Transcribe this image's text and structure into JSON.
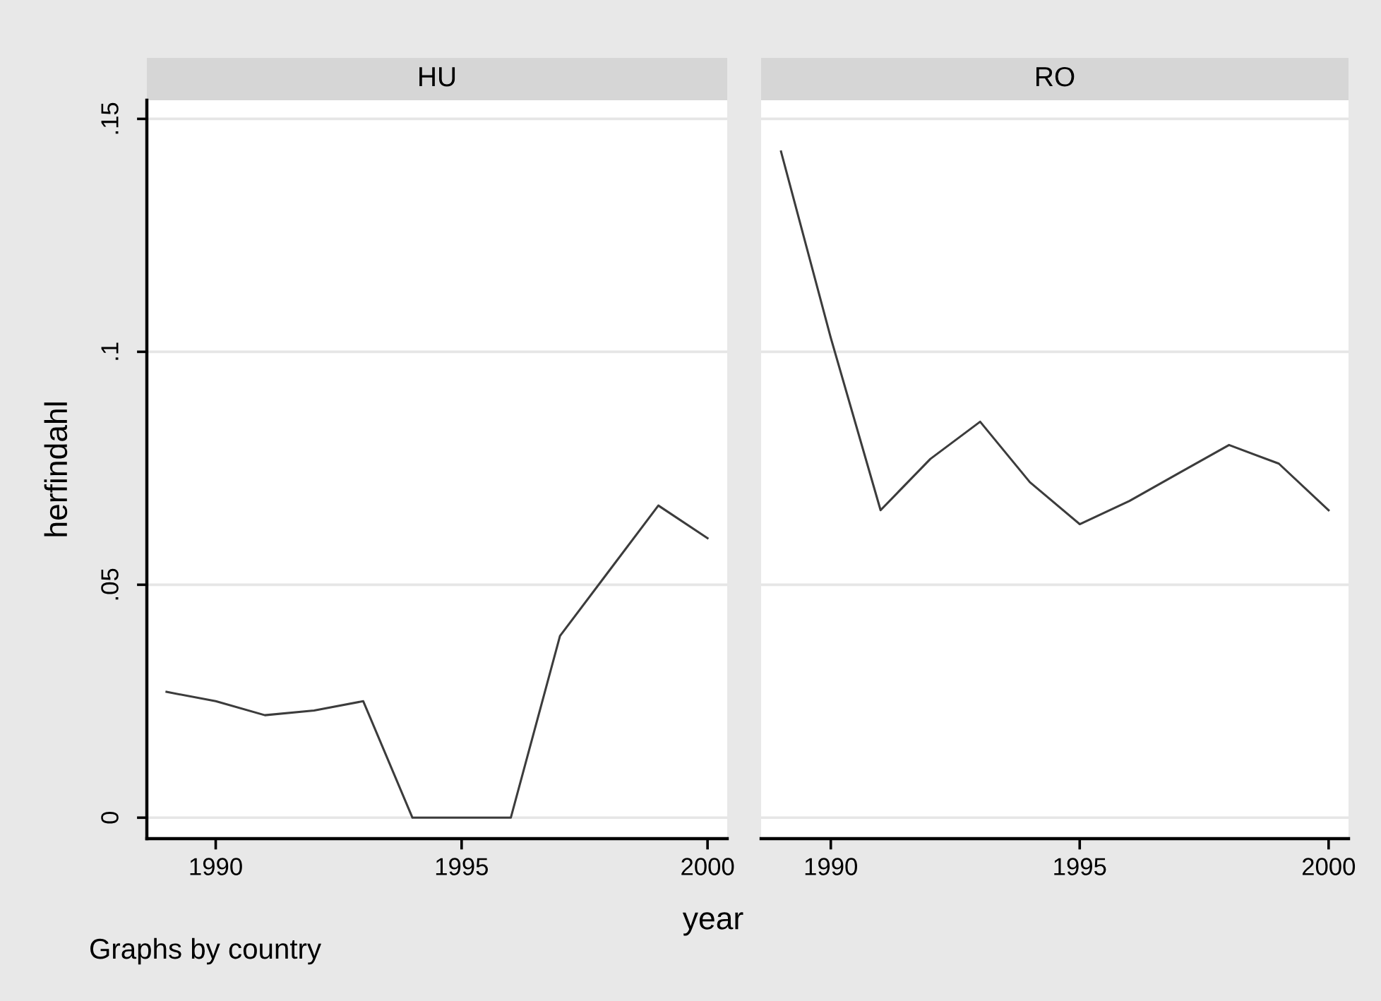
{
  "chart_data": [
    {
      "type": "line",
      "title": "HU",
      "xlabel": "year",
      "ylabel": "herfindahl",
      "x": [
        1989,
        1990,
        1991,
        1992,
        1993,
        1994,
        1995,
        1996,
        1997,
        1998,
        1999,
        2000
      ],
      "values": [
        0.027,
        0.025,
        0.022,
        0.023,
        0.025,
        0,
        0,
        0,
        0.039,
        0.053,
        0.067,
        0.06
      ],
      "color": "#3c3c3c",
      "xlim": [
        1988.6,
        2000.4
      ],
      "xticks": [
        1990,
        1995,
        2000
      ],
      "ylim": [
        -0.0045,
        0.154
      ],
      "yticks": [
        0,
        {
          "value": 0.05,
          "label": ".05"
        },
        {
          "value": 0.1,
          "label": ".1"
        },
        {
          "value": 0.15,
          "label": ".15"
        }
      ],
      "grid": "y",
      "annotations": [
        "Graphs by country"
      ]
    },
    {
      "type": "line",
      "title": "RO",
      "x": [
        1989,
        1990,
        1991,
        1992,
        1993,
        1994,
        1995,
        1996,
        1997,
        1998,
        1999,
        2000
      ],
      "values": [
        0.143,
        0.103,
        0.066,
        0.077,
        0.085,
        0.072,
        0.063,
        0.068,
        0.074,
        0.08,
        0.076,
        0.066
      ],
      "color": "#3c3c3c",
      "xlim": [
        1988.6,
        2000.4
      ],
      "xticks": [
        1990,
        1995,
        2000
      ],
      "ylim": [
        -0.0045,
        0.154
      ],
      "yticks": [
        {
          "value": 0,
          "label": null
        },
        {
          "value": 0.05,
          "label": null
        },
        {
          "value": 0.1,
          "label": null
        },
        {
          "value": 0.15,
          "label": null
        }
      ],
      "grid": "y",
      "tick_labels": "x"
    }
  ]
}
